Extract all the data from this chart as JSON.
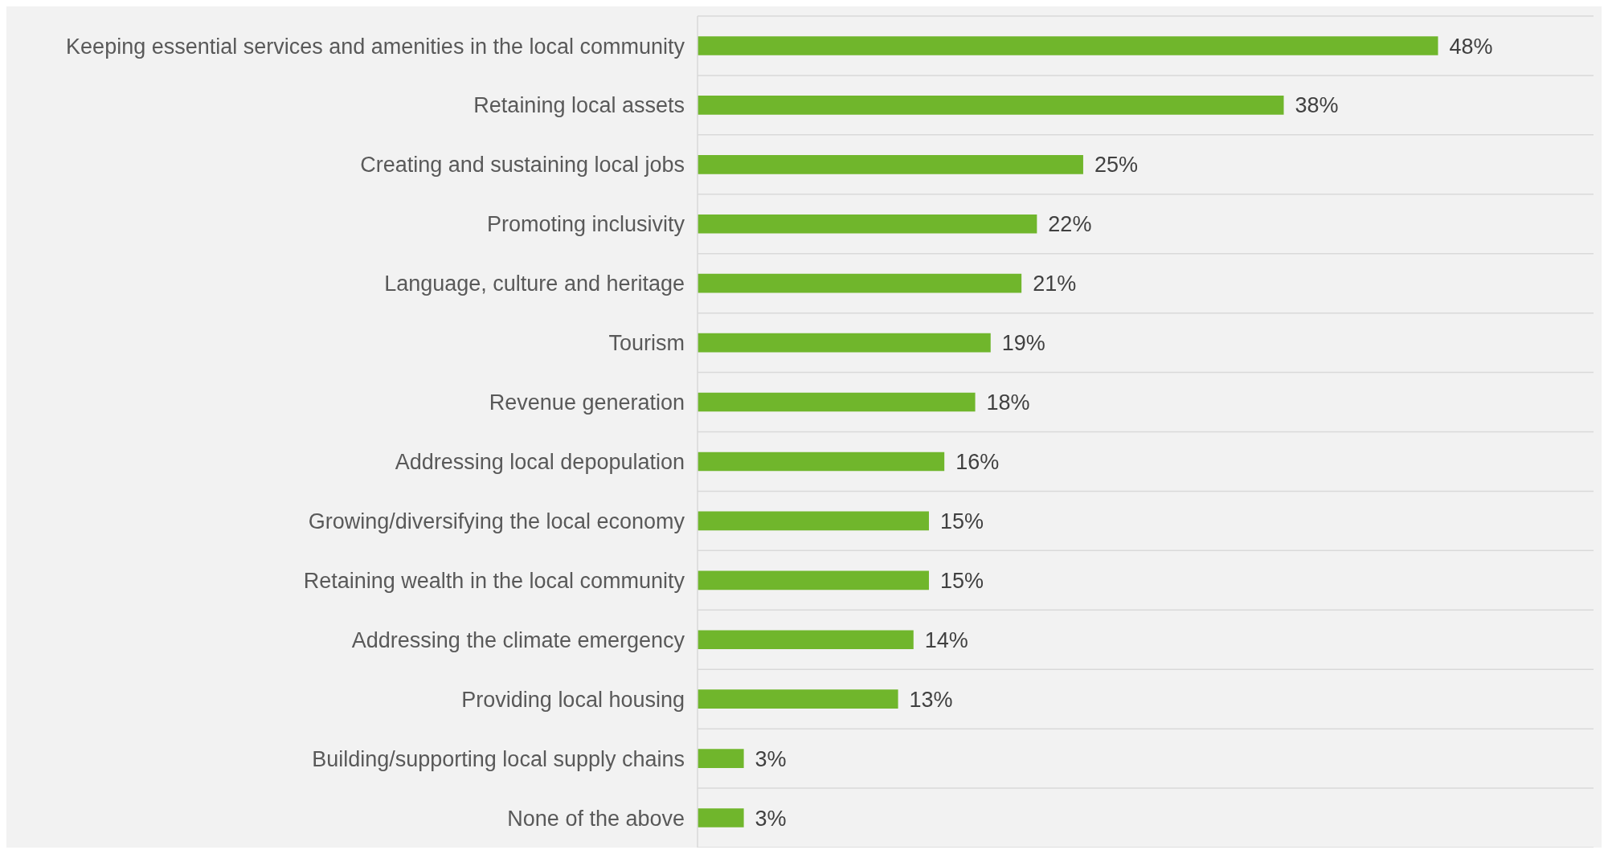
{
  "chart_data": {
    "type": "bar",
    "orientation": "horizontal",
    "categories": [
      "Keeping essential services and amenities in the local community",
      "Retaining local assets",
      "Creating and sustaining local jobs",
      "Promoting inclusivity",
      "Language, culture and heritage",
      "Tourism",
      "Revenue generation",
      "Addressing local depopulation",
      "Growing/diversifying the local economy",
      "Retaining wealth in the local community",
      "Addressing the climate emergency",
      "Providing local housing",
      "Building/supporting local supply chains",
      "None of the above"
    ],
    "values": [
      48,
      38,
      25,
      22,
      21,
      19,
      18,
      16,
      15,
      15,
      14,
      13,
      3,
      3
    ],
    "value_labels": [
      "48%",
      "38%",
      "25%",
      "22%",
      "21%",
      "19%",
      "18%",
      "16%",
      "15%",
      "15%",
      "14%",
      "13%",
      "3%",
      "3%"
    ],
    "color": "#70b62c",
    "relative": false,
    "grid": "y"
  }
}
